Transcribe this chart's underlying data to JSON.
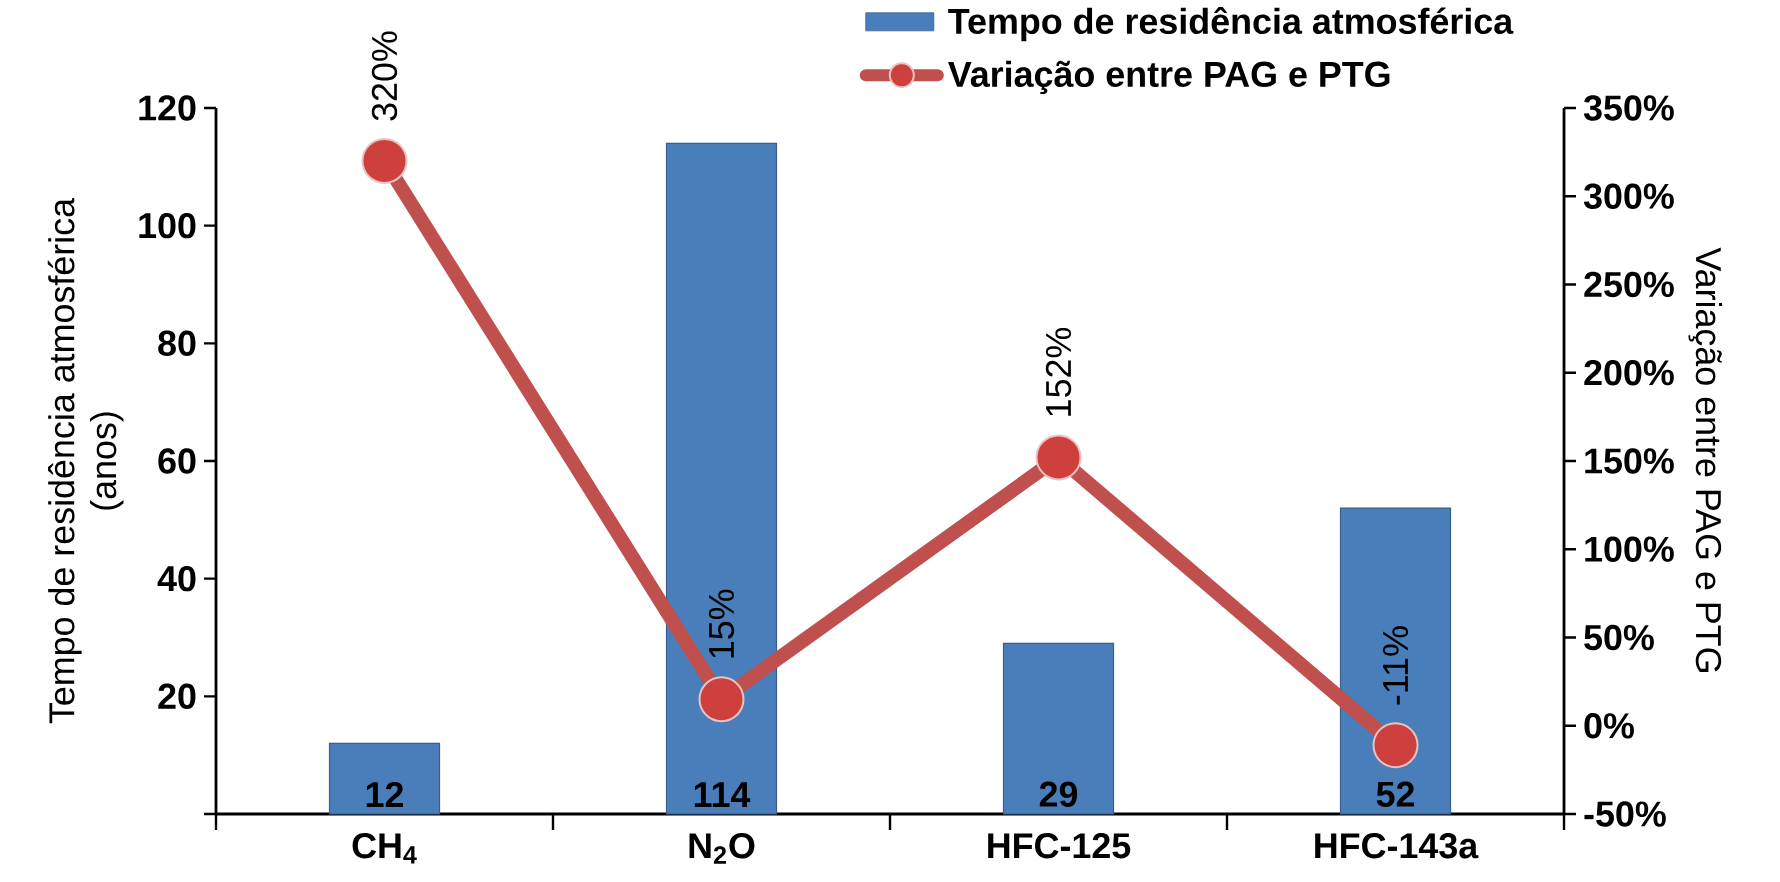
{
  "chart_data": {
    "type": "bar",
    "categories": [
      "CH$_{4}$",
      "N$_{2}$O",
      "HFC-125",
      "HFC-143a"
    ],
    "ylabel": "Tempo de residência atmosférica (anos)",
    "y2label": "Variação entre PAG e PTG",
    "ylim": [
      0,
      120
    ],
    "yticks": [
      {
        "value": 0,
        "label": null
      },
      20,
      40,
      60,
      80,
      100,
      120
    ],
    "y2lim": [
      -50,
      350
    ],
    "y2ticks": [
      {
        "value": -50,
        "label": "-50%"
      },
      {
        "value": 0,
        "label": "0%"
      },
      {
        "value": 50,
        "label": "50%"
      },
      {
        "value": 100,
        "label": "100%"
      },
      {
        "value": 150,
        "label": "150%"
      },
      {
        "value": 200,
        "label": "200%"
      },
      {
        "value": 250,
        "label": "250%"
      },
      {
        "value": 300,
        "label": "300%"
      },
      {
        "value": 350,
        "label": "350%"
      }
    ],
    "series": [
      {
        "name": "Tempo de residência atmosférica",
        "color": "#4a7ebb",
        "values": [
          12,
          114,
          29,
          52
        ],
        "value_labels": [
          "12",
          "114",
          "29",
          "52"
        ]
      },
      {
        "name": "Variação entre PAG e PTG",
        "type": "line",
        "axis": "y2",
        "color": "#c0504d",
        "values": [
          320,
          15,
          152,
          -11
        ],
        "value_labels": [
          "320%",
          "15%",
          "152%",
          "-11%"
        ]
      }
    ],
    "marker": "circle",
    "line_style": "solid",
    "legend": "top right"
  }
}
